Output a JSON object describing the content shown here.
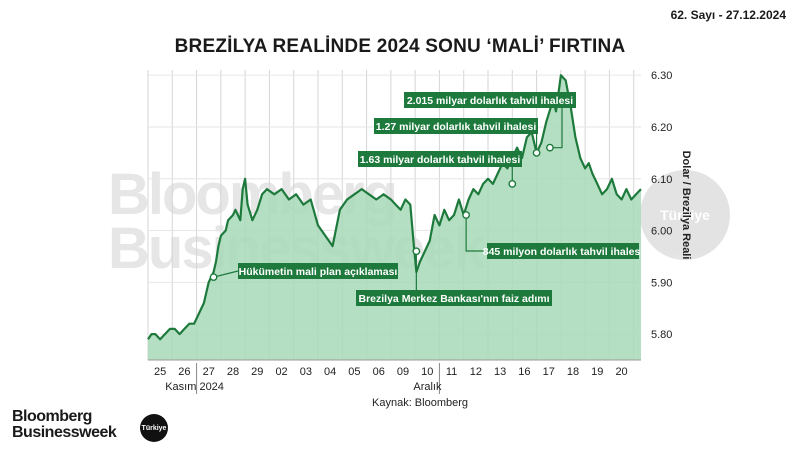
{
  "header": {
    "issue": "62. Sayı - 27.12.2024",
    "title": "BREZİLYA REALİNDE 2024 SONU ‘MALİ’ FIRTINA"
  },
  "source": "Kaynak: Bloomberg",
  "brand": {
    "line1": "Bloomberg",
    "line2": "Businessweek",
    "badge": "Türkiye"
  },
  "watermark": {
    "line1": "Bloomberg",
    "line2": "Businessweek",
    "badge": "Türkiye"
  },
  "chart_data": {
    "type": "area",
    "ylabel": "Dolar / Brezilya Reali",
    "ylim": [
      5.75,
      6.31
    ],
    "yticks": [
      5.8,
      5.9,
      6.0,
      6.1,
      6.2,
      6.3
    ],
    "ytick_labels": [
      "5.80",
      "5.90",
      "6.00",
      "6.10",
      "6.20",
      "6.30"
    ],
    "xlim": [
      0,
      20.3
    ],
    "x_ticks": [
      "25",
      "26",
      "27",
      "28",
      "29",
      "02",
      "03",
      "04",
      "05",
      "06",
      "09",
      "10",
      "11",
      "12",
      "13",
      "16",
      "17",
      "18",
      "19",
      "20"
    ],
    "x_groups": [
      {
        "label": "Kasım 2024",
        "start": 2
      },
      {
        "label": "Aralık",
        "start": 12
      }
    ],
    "colors": {
      "fill": "#a8d9b9",
      "line": "#1e7a3c",
      "label_bg": "#1e7a3c",
      "label_text": "#ffffff"
    },
    "series": [
      {
        "x": [
          0,
          0.15,
          0.3,
          0.5,
          0.7,
          0.9,
          1.1,
          1.3,
          1.5,
          1.7,
          1.9,
          2.1,
          2.3,
          2.5,
          2.7,
          2.8,
          2.9,
          3.0,
          3.2,
          3.3,
          3.5,
          3.6,
          3.7,
          3.8,
          3.9,
          4.0,
          4.1,
          4.3,
          4.5,
          4.7,
          4.9,
          5.2,
          5.5,
          5.8,
          6.1,
          6.4,
          6.7,
          7.0,
          7.3,
          7.6,
          7.9,
          8.2,
          8.5,
          8.8,
          9.1,
          9.4,
          9.7,
          10.0,
          10.2,
          10.4,
          10.6,
          10.8,
          10.95,
          11.05,
          11.2,
          11.4,
          11.6,
          11.8,
          12.0,
          12.2,
          12.4,
          12.6,
          12.8,
          13.0,
          13.2,
          13.4,
          13.6,
          13.8,
          14.0,
          14.2,
          14.4,
          14.6,
          14.8,
          15.0,
          15.2,
          15.4,
          15.6,
          15.8,
          16.0,
          16.2,
          16.4,
          16.6,
          16.7,
          16.8,
          17.0,
          17.2,
          17.4,
          17.6,
          17.8,
          18.0,
          18.15,
          18.3,
          18.5,
          18.7,
          18.9,
          19.1,
          19.3,
          19.5,
          19.7,
          19.9,
          20.1,
          20.3
        ],
        "values": [
          5.79,
          5.8,
          5.8,
          5.79,
          5.8,
          5.81,
          5.81,
          5.8,
          5.81,
          5.82,
          5.82,
          5.84,
          5.86,
          5.9,
          5.92,
          5.94,
          5.97,
          5.99,
          6.0,
          6.02,
          6.03,
          6.04,
          6.03,
          6.02,
          6.08,
          6.1,
          6.05,
          6.02,
          6.04,
          6.07,
          6.08,
          6.07,
          6.08,
          6.06,
          6.07,
          6.05,
          6.06,
          6.01,
          5.99,
          5.97,
          6.04,
          6.06,
          6.07,
          6.08,
          6.07,
          6.06,
          6.07,
          6.06,
          6.05,
          6.04,
          6.06,
          6.05,
          5.97,
          5.92,
          5.94,
          5.96,
          5.98,
          6.03,
          6.01,
          6.04,
          6.02,
          6.03,
          6.06,
          6.03,
          6.06,
          6.08,
          6.07,
          6.09,
          6.1,
          6.09,
          6.11,
          6.13,
          6.12,
          6.14,
          6.16,
          6.14,
          6.18,
          6.19,
          6.15,
          6.17,
          6.21,
          6.24,
          6.25,
          6.23,
          6.3,
          6.29,
          6.24,
          6.18,
          6.14,
          6.12,
          6.13,
          6.11,
          6.09,
          6.07,
          6.08,
          6.1,
          6.07,
          6.06,
          6.08,
          6.06,
          6.07,
          6.08
        ]
      }
    ],
    "annotations": [
      {
        "text": "Hükümetin mali plan açıklaması",
        "x": 2.7,
        "y": 5.91
      },
      {
        "text": "Brezilya Merkez Bankası'nın faiz adımı",
        "x": 11.05,
        "y": 5.96
      },
      {
        "text": "845 milyon dolarlık tahvil ihalesi",
        "x": 13.1,
        "y": 6.03
      },
      {
        "text": "1.63 milyar dolarlık tahvil ihalesi",
        "x": 15.0,
        "y": 6.09
      },
      {
        "text": "1.27 milyar dolarlık tahvil ihalesi",
        "x": 16.0,
        "y": 6.15
      },
      {
        "text": "2.015 milyar dolarlık tahvil ihalesi",
        "x": 16.55,
        "y": 6.16
      }
    ]
  }
}
